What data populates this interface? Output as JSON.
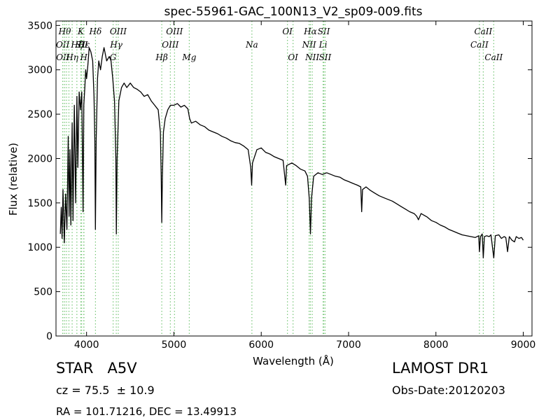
{
  "chart_data": {
    "type": "line",
    "title": "spec-55961-GAC_100N13_V2_sp09-009.fits",
    "xlabel": "Wavelength (Å)",
    "ylabel": "Flux (relative)",
    "xlim": [
      3650,
      9100
    ],
    "ylim": [
      0,
      3550
    ],
    "xticks": [
      4000,
      5000,
      6000,
      7000,
      8000,
      9000
    ],
    "yticks": [
      0,
      500,
      1000,
      1500,
      2000,
      2500,
      3000,
      3500
    ],
    "grid": false,
    "series": [
      {
        "color": "#000000",
        "points": [
          [
            3700,
            1150
          ],
          [
            3710,
            1450
          ],
          [
            3720,
            1100
          ],
          [
            3730,
            1650
          ],
          [
            3745,
            1050
          ],
          [
            3760,
            1600
          ],
          [
            3775,
            1200
          ],
          [
            3790,
            2250
          ],
          [
            3800,
            1350
          ],
          [
            3810,
            2100
          ],
          [
            3820,
            1250
          ],
          [
            3835,
            2400
          ],
          [
            3845,
            1300
          ],
          [
            3860,
            2600
          ],
          [
            3875,
            1500
          ],
          [
            3890,
            2700
          ],
          [
            3900,
            1900
          ],
          [
            3915,
            2750
          ],
          [
            3930,
            2550
          ],
          [
            3945,
            2750
          ],
          [
            3960,
            1400
          ],
          [
            3968,
            2600
          ],
          [
            3980,
            2800
          ],
          [
            3990,
            3000
          ],
          [
            4000,
            2900
          ],
          [
            4015,
            3050
          ],
          [
            4030,
            3250
          ],
          [
            4050,
            3200
          ],
          [
            4070,
            3100
          ],
          [
            4085,
            2700
          ],
          [
            4095,
            2200
          ],
          [
            4101,
            1200
          ],
          [
            4110,
            2200
          ],
          [
            4125,
            2900
          ],
          [
            4140,
            3100
          ],
          [
            4160,
            3000
          ],
          [
            4180,
            3150
          ],
          [
            4200,
            3250
          ],
          [
            4230,
            3100
          ],
          [
            4260,
            3150
          ],
          [
            4280,
            3100
          ],
          [
            4300,
            2900
          ],
          [
            4320,
            2650
          ],
          [
            4335,
            2000
          ],
          [
            4341,
            1150
          ],
          [
            4350,
            2000
          ],
          [
            4370,
            2650
          ],
          [
            4400,
            2800
          ],
          [
            4430,
            2850
          ],
          [
            4460,
            2800
          ],
          [
            4500,
            2850
          ],
          [
            4540,
            2800
          ],
          [
            4580,
            2780
          ],
          [
            4620,
            2750
          ],
          [
            4660,
            2700
          ],
          [
            4700,
            2720
          ],
          [
            4740,
            2650
          ],
          [
            4780,
            2600
          ],
          [
            4820,
            2550
          ],
          [
            4845,
            2300
          ],
          [
            4855,
            1800
          ],
          [
            4861,
            1280
          ],
          [
            4868,
            1800
          ],
          [
            4880,
            2300
          ],
          [
            4900,
            2450
          ],
          [
            4930,
            2550
          ],
          [
            4960,
            2600
          ],
          [
            5000,
            2600
          ],
          [
            5040,
            2620
          ],
          [
            5080,
            2580
          ],
          [
            5120,
            2600
          ],
          [
            5160,
            2560
          ],
          [
            5180,
            2450
          ],
          [
            5200,
            2400
          ],
          [
            5250,
            2420
          ],
          [
            5300,
            2380
          ],
          [
            5350,
            2360
          ],
          [
            5400,
            2320
          ],
          [
            5450,
            2300
          ],
          [
            5500,
            2280
          ],
          [
            5550,
            2250
          ],
          [
            5600,
            2230
          ],
          [
            5650,
            2200
          ],
          [
            5700,
            2180
          ],
          [
            5750,
            2170
          ],
          [
            5800,
            2140
          ],
          [
            5850,
            2100
          ],
          [
            5880,
            1900
          ],
          [
            5890,
            1700
          ],
          [
            5900,
            1950
          ],
          [
            5950,
            2100
          ],
          [
            6000,
            2120
          ],
          [
            6050,
            2070
          ],
          [
            6100,
            2050
          ],
          [
            6150,
            2020
          ],
          [
            6200,
            2000
          ],
          [
            6250,
            1980
          ],
          [
            6280,
            1700
          ],
          [
            6290,
            1920
          ],
          [
            6350,
            1950
          ],
          [
            6400,
            1920
          ],
          [
            6450,
            1880
          ],
          [
            6500,
            1860
          ],
          [
            6530,
            1800
          ],
          [
            6550,
            1550
          ],
          [
            6563,
            1150
          ],
          [
            6575,
            1550
          ],
          [
            6600,
            1800
          ],
          [
            6650,
            1840
          ],
          [
            6700,
            1820
          ],
          [
            6750,
            1840
          ],
          [
            6800,
            1820
          ],
          [
            6850,
            1800
          ],
          [
            6900,
            1790
          ],
          [
            6950,
            1760
          ],
          [
            7000,
            1740
          ],
          [
            7050,
            1720
          ],
          [
            7100,
            1700
          ],
          [
            7140,
            1680
          ],
          [
            7150,
            1400
          ],
          [
            7160,
            1650
          ],
          [
            7200,
            1680
          ],
          [
            7250,
            1640
          ],
          [
            7300,
            1610
          ],
          [
            7350,
            1580
          ],
          [
            7400,
            1560
          ],
          [
            7450,
            1540
          ],
          [
            7500,
            1520
          ],
          [
            7550,
            1490
          ],
          [
            7600,
            1460
          ],
          [
            7650,
            1430
          ],
          [
            7700,
            1400
          ],
          [
            7750,
            1380
          ],
          [
            7780,
            1350
          ],
          [
            7800,
            1310
          ],
          [
            7830,
            1380
          ],
          [
            7900,
            1340
          ],
          [
            7950,
            1300
          ],
          [
            8000,
            1280
          ],
          [
            8050,
            1250
          ],
          [
            8100,
            1230
          ],
          [
            8150,
            1200
          ],
          [
            8200,
            1180
          ],
          [
            8250,
            1160
          ],
          [
            8300,
            1140
          ],
          [
            8350,
            1130
          ],
          [
            8400,
            1120
          ],
          [
            8450,
            1110
          ],
          [
            8490,
            1130
          ],
          [
            8498,
            950
          ],
          [
            8510,
            1120
          ],
          [
            8530,
            1150
          ],
          [
            8542,
            880
          ],
          [
            8555,
            1120
          ],
          [
            8580,
            1130
          ],
          [
            8610,
            1120
          ],
          [
            8630,
            1140
          ],
          [
            8662,
            880
          ],
          [
            8680,
            1130
          ],
          [
            8720,
            1140
          ],
          [
            8750,
            1100
          ],
          [
            8780,
            1120
          ],
          [
            8800,
            1110
          ],
          [
            8820,
            950
          ],
          [
            8840,
            1120
          ],
          [
            8870,
            1080
          ],
          [
            8900,
            1060
          ],
          [
            8920,
            1120
          ],
          [
            8950,
            1100
          ],
          [
            8980,
            1110
          ],
          [
            9000,
            1080
          ]
        ]
      }
    ],
    "line_color": "#77c677",
    "lines": [
      {
        "wl": 3727,
        "labels": [
          "OII"
        ],
        "row": 2
      },
      {
        "wl": 3729,
        "labels": [
          "OII"
        ],
        "row": 3
      },
      {
        "wl": 3750,
        "labels": [
          "Hθ"
        ],
        "row": 1
      },
      {
        "wl": 3771,
        "labels": [],
        "row": 0
      },
      {
        "wl": 3798,
        "labels": [],
        "row": 0
      },
      {
        "wl": 3835,
        "labels": [
          "Hη"
        ],
        "row": 3
      },
      {
        "wl": 3889,
        "labels": [
          "Hζ"
        ],
        "row": 2
      },
      {
        "wl": 3934,
        "labels": [
          "K"
        ],
        "row": 1
      },
      {
        "wl": 3944,
        "labels": [
          "SII"
        ],
        "row": 2
      },
      {
        "wl": 3968,
        "labels": [
          "H"
        ],
        "row": 3
      },
      {
        "wl": 3970,
        "labels": [
          "Hε"
        ],
        "row": 2
      },
      {
        "wl": 4102,
        "labels": [
          "Hδ"
        ],
        "row": 1
      },
      {
        "wl": 4304,
        "labels": [
          "G"
        ],
        "row": 3
      },
      {
        "wl": 4340,
        "labels": [
          "Hγ"
        ],
        "row": 2
      },
      {
        "wl": 4363,
        "labels": [
          "OIII"
        ],
        "row": 1
      },
      {
        "wl": 4861,
        "labels": [
          "Hβ"
        ],
        "row": 3
      },
      {
        "wl": 4959,
        "labels": [
          "OIII"
        ],
        "row": 2
      },
      {
        "wl": 5007,
        "labels": [
          "OIII"
        ],
        "row": 1
      },
      {
        "wl": 5176,
        "labels": [
          "Mg"
        ],
        "row": 3
      },
      {
        "wl": 5893,
        "labels": [
          "Na"
        ],
        "row": 2
      },
      {
        "wl": 6300,
        "labels": [
          "OI"
        ],
        "row": 1
      },
      {
        "wl": 6364,
        "labels": [
          "OI"
        ],
        "row": 3
      },
      {
        "wl": 6548,
        "labels": [
          "NII"
        ],
        "row": 2
      },
      {
        "wl": 6563,
        "labels": [
          "Hα"
        ],
        "row": 1
      },
      {
        "wl": 6584,
        "labels": [
          "NII"
        ],
        "row": 3
      },
      {
        "wl": 6708,
        "labels": [
          "Li"
        ],
        "row": 2
      },
      {
        "wl": 6716,
        "labels": [
          "SII"
        ],
        "row": 1
      },
      {
        "wl": 6731,
        "labels": [
          "SII"
        ],
        "row": 3
      },
      {
        "wl": 8498,
        "labels": [
          "CaII"
        ],
        "row": 2
      },
      {
        "wl": 8542,
        "labels": [
          "CaII"
        ],
        "row": 1
      },
      {
        "wl": 8662,
        "labels": [
          "CaII"
        ],
        "row": 3
      }
    ]
  },
  "info": {
    "class_line": "STAR   A5V",
    "cz_line": "cz = 75.5  ± 10.9",
    "radec_line": "RA = 101.71216, DEC = 13.49913",
    "survey": "LAMOST DR1",
    "obs_date": "Obs-Date:20120203"
  }
}
